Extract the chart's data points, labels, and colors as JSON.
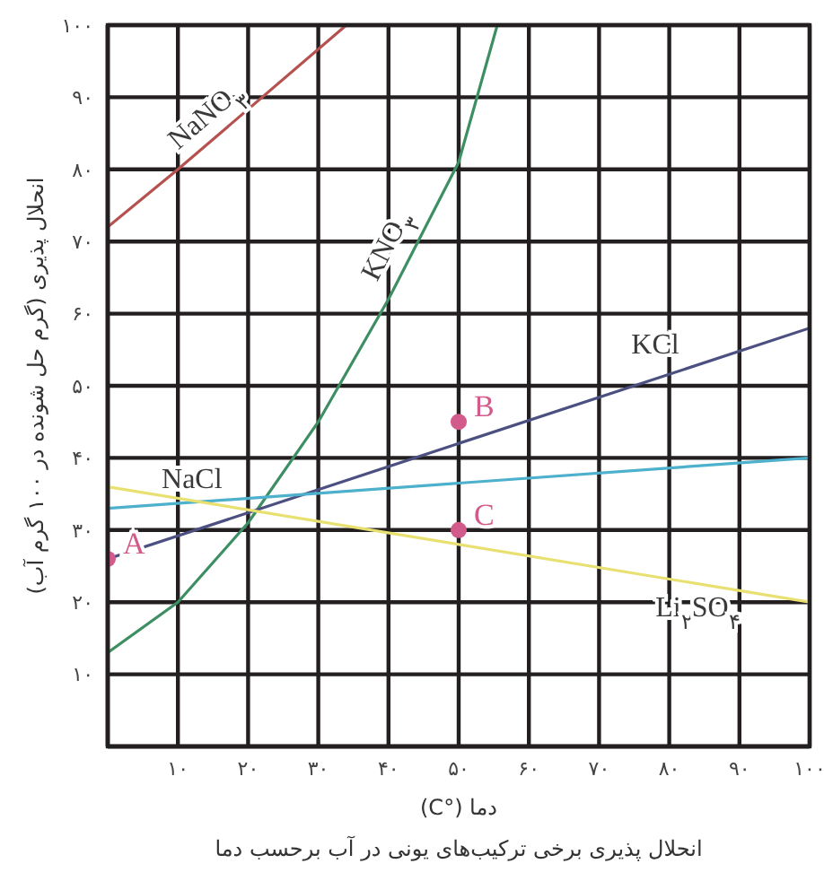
{
  "chart_data": {
    "type": "line",
    "xlabel": "دما (°C)",
    "ylabel": "انحلال پذیری (گرم حل شونده در ۱۰۰ گرم آب)",
    "annotations": [
      "انحلال پذیری برخی ترکیب‌های یونی در آب برحسب دما"
    ],
    "xlim": [
      0,
      100
    ],
    "ylim": [
      0,
      100
    ],
    "xticks": [
      {
        "value": 0,
        "label": null
      },
      {
        "value": 10,
        "label": "۱۰"
      },
      {
        "value": 20,
        "label": "۲۰"
      },
      {
        "value": 30,
        "label": "۳۰"
      },
      {
        "value": 40,
        "label": "۴۰"
      },
      {
        "value": 50,
        "label": "۵۰"
      },
      {
        "value": 60,
        "label": "۶۰"
      },
      {
        "value": 70,
        "label": "۷۰"
      },
      {
        "value": 80,
        "label": "۸۰"
      },
      {
        "value": 90,
        "label": "۹۰"
      },
      {
        "value": 100,
        "label": "۱۰۰"
      }
    ],
    "yticks": [
      {
        "value": 0,
        "label": null
      },
      {
        "value": 10,
        "label": "۱۰"
      },
      {
        "value": 20,
        "label": "۲۰"
      },
      {
        "value": 30,
        "label": "۳۰"
      },
      {
        "value": 40,
        "label": "۴۰"
      },
      {
        "value": 50,
        "label": "۵۰"
      },
      {
        "value": 60,
        "label": "۶۰"
      },
      {
        "value": 70,
        "label": "۷۰"
      },
      {
        "value": 80,
        "label": "۸۰"
      },
      {
        "value": 90,
        "label": "۹۰"
      },
      {
        "value": 100,
        "label": "۱۰۰"
      }
    ],
    "grid": true,
    "legend": false,
    "marker": "none",
    "line_style": "solid",
    "series": [
      {
        "name": "NaNO$_{۳}$",
        "color": "#b5524f",
        "x": [
          0,
          10,
          34
        ],
        "values": [
          72,
          80,
          100
        ]
      },
      {
        "name": "KNO$_{۳}$",
        "color": "#3d8f63",
        "x": [
          0,
          10,
          20,
          30,
          40,
          50,
          55.5
        ],
        "values": [
          13,
          20,
          31,
          45,
          62,
          81,
          100
        ]
      },
      {
        "name": "KCl",
        "color": "#4c5080",
        "x": [
          0,
          100
        ],
        "values": [
          26,
          58
        ]
      },
      {
        "name": "NaCl",
        "color": "#4db0cc",
        "x": [
          0,
          100
        ],
        "values": [
          33,
          40
        ]
      },
      {
        "name": "Li$_{۲}$SO$_{۴}$",
        "color": "#e8e070",
        "x": [
          0,
          100
        ],
        "values": [
          36,
          20
        ]
      },
      {
        "type": "scatter",
        "color": "#d35b8b",
        "marker": "circle",
        "x": [
          0,
          50,
          50
        ],
        "values": [
          26,
          45,
          30
        ],
        "value_labels": [
          "A",
          "B",
          "C"
        ]
      }
    ]
  }
}
